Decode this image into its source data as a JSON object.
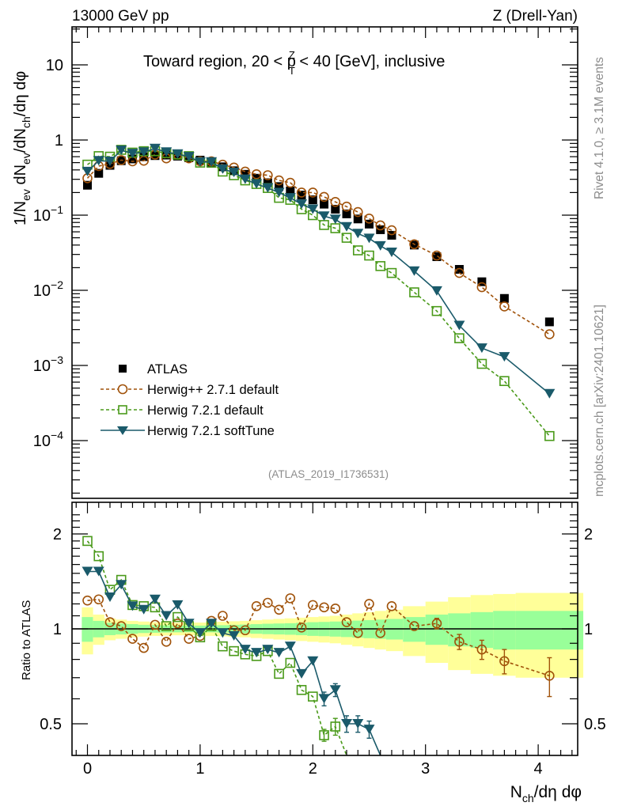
{
  "header": {
    "left": "13000 GeV pp",
    "right": "Z (Drell-Yan)"
  },
  "side_labels": {
    "rivet": "Rivet 4.1.0, ≥ 3.1M events",
    "mcplots": "mcplots.cern.ch [arXiv:2401.10621]"
  },
  "analysis_id": "(ATLAS_2019_I1736531)",
  "colors": {
    "atlas": "#000000",
    "herwigpp": "#a0520a",
    "herwig721": "#4a9a1a",
    "softtune": "#1a5a6a",
    "band_inner": "#99ff99",
    "band_outer": "#ffff99"
  },
  "chart_data": [
    {
      "type": "scatter",
      "panel": "main",
      "title": "Toward region, 20 < p_T^Z < 40 [GeV], inclusive",
      "title_parts": {
        "pre": "Toward region, 20 < p",
        "sup": "Z",
        "sub": "T",
        "post": " < 40 [GeV], inclusive"
      },
      "ylabel": "1/N_ev dN_ev/dN_ch/dη dφ",
      "ylabel_parts": {
        "a": "1/N",
        "a_sub": "ev",
        "b": " dN",
        "b_sub": "ev",
        "c": "/dN",
        "c_sub": "ch",
        "d": "/dη dφ"
      },
      "xlabel": "N_ch/dη dφ",
      "yscale": "log",
      "ylim": [
        2e-05,
        30
      ],
      "xlim": [
        -0.13,
        4.38
      ],
      "ytick_labels": [
        {
          "v": 10,
          "base": "10",
          "exp": ""
        },
        {
          "v": 1,
          "base": "1",
          "exp": ""
        },
        {
          "v": 0.1,
          "base": "10",
          "exp": "−1"
        },
        {
          "v": 0.01,
          "base": "10",
          "exp": "−2"
        },
        {
          "v": 0.001,
          "base": "10",
          "exp": "−3"
        },
        {
          "v": 0.0001,
          "base": "10",
          "exp": "−4"
        }
      ],
      "legend_position": "lower-left",
      "series": [
        {
          "name": "ATLAS",
          "key": "atlas",
          "marker": "square-filled",
          "line": "none",
          "x": [
            0.0,
            0.1,
            0.2,
            0.3,
            0.4,
            0.5,
            0.6,
            0.7,
            0.8,
            0.9,
            1.0,
            1.1,
            1.2,
            1.3,
            1.4,
            1.5,
            1.6,
            1.7,
            1.8,
            1.9,
            2.0,
            2.1,
            2.2,
            2.3,
            2.4,
            2.5,
            2.6,
            2.7,
            2.9,
            3.1,
            3.3,
            3.5,
            3.7,
            4.1
          ],
          "y": [
            0.25,
            0.36,
            0.46,
            0.53,
            0.56,
            0.6,
            0.62,
            0.63,
            0.61,
            0.58,
            0.54,
            0.49,
            0.44,
            0.39,
            0.35,
            0.31,
            0.27,
            0.24,
            0.21,
            0.185,
            0.16,
            0.14,
            0.12,
            0.104,
            0.089,
            0.076,
            0.064,
            0.054,
            0.04,
            0.028,
            0.019,
            0.013,
            0.0078,
            0.0038
          ]
        },
        {
          "name": "Herwig++ 2.7.1 default",
          "key": "herwigpp",
          "marker": "circle-open",
          "line": "dashed",
          "x": [
            0.0,
            0.1,
            0.2,
            0.3,
            0.4,
            0.5,
            0.6,
            0.7,
            0.8,
            0.9,
            1.0,
            1.1,
            1.2,
            1.3,
            1.4,
            1.5,
            1.6,
            1.7,
            1.8,
            1.9,
            2.0,
            2.1,
            2.2,
            2.3,
            2.4,
            2.5,
            2.6,
            2.7,
            2.9,
            3.1,
            3.3,
            3.5,
            3.7,
            4.1
          ],
          "y": [
            0.31,
            0.45,
            0.48,
            0.54,
            0.52,
            0.53,
            0.64,
            0.57,
            0.64,
            0.57,
            0.52,
            0.52,
            0.47,
            0.43,
            0.38,
            0.35,
            0.34,
            0.29,
            0.27,
            0.2,
            0.2,
            0.175,
            0.15,
            0.13,
            0.11,
            0.09,
            0.073,
            0.063,
            0.041,
            0.029,
            0.017,
            0.011,
            0.0061,
            0.0026
          ]
        },
        {
          "name": "Herwig 7.2.1 default",
          "key": "herwig721",
          "marker": "square-open",
          "line": "dashed",
          "x": [
            0.0,
            0.1,
            0.2,
            0.3,
            0.4,
            0.5,
            0.6,
            0.7,
            0.8,
            0.9,
            1.0,
            1.1,
            1.2,
            1.3,
            1.4,
            1.5,
            1.6,
            1.7,
            1.8,
            1.9,
            2.0,
            2.1,
            2.2,
            2.3,
            2.4,
            2.5,
            2.6,
            2.7,
            2.9,
            3.1,
            3.3,
            3.5,
            3.7,
            4.1
          ],
          "y": [
            0.47,
            0.61,
            0.6,
            0.74,
            0.68,
            0.71,
            0.71,
            0.67,
            0.64,
            0.61,
            0.5,
            0.5,
            0.38,
            0.34,
            0.29,
            0.26,
            0.23,
            0.17,
            0.16,
            0.12,
            0.1,
            0.074,
            0.067,
            0.05,
            0.034,
            0.029,
            0.021,
            0.017,
            0.0094,
            0.0053,
            0.0023,
            0.00105,
            0.00062,
            0.000115
          ]
        },
        {
          "name": "Herwig 7.2.1 softTune",
          "key": "softtune",
          "marker": "triangle-down-filled",
          "line": "solid",
          "x": [
            0.0,
            0.1,
            0.2,
            0.3,
            0.4,
            0.5,
            0.6,
            0.7,
            0.8,
            0.9,
            1.0,
            1.1,
            1.2,
            1.3,
            1.4,
            1.5,
            1.6,
            1.7,
            1.8,
            1.9,
            2.0,
            2.1,
            2.2,
            2.3,
            2.4,
            2.5,
            2.6,
            2.7,
            2.9,
            3.1,
            3.3,
            3.5,
            3.7,
            4.1
          ],
          "y": [
            0.38,
            0.53,
            0.52,
            0.73,
            0.66,
            0.69,
            0.77,
            0.69,
            0.65,
            0.6,
            0.51,
            0.51,
            0.41,
            0.37,
            0.3,
            0.26,
            0.23,
            0.2,
            0.17,
            0.14,
            0.12,
            0.097,
            0.088,
            0.07,
            0.057,
            0.049,
            0.039,
            0.032,
            0.018,
            0.0098,
            0.0034,
            0.0017,
            0.0013,
            0.00042
          ]
        }
      ]
    },
    {
      "type": "scatter",
      "panel": "ratio",
      "ylabel": "Ratio to ATLAS",
      "xlabel": "N_ch/dη dφ",
      "yscale": "log",
      "ylim": [
        0.43,
        2.35
      ],
      "xlim": [
        -0.13,
        4.38
      ],
      "ytick_labels": [
        {
          "v": 2,
          "label": "2"
        },
        {
          "v": 1,
          "label": "1"
        },
        {
          "v": 0.5,
          "label": "0.5"
        }
      ],
      "xtick_labels": [
        {
          "v": 0,
          "label": "0"
        },
        {
          "v": 1,
          "label": "1"
        },
        {
          "v": 2,
          "label": "2"
        },
        {
          "v": 3,
          "label": "3"
        },
        {
          "v": 4,
          "label": "4"
        }
      ],
      "reference_line": 1,
      "uncertainty_band": {
        "x_edges": [
          -0.05,
          0.05,
          0.15,
          0.25,
          0.35,
          0.45,
          0.55,
          0.65,
          0.75,
          0.85,
          0.95,
          1.05,
          1.15,
          1.25,
          1.35,
          1.45,
          1.55,
          1.65,
          1.75,
          1.85,
          1.95,
          2.05,
          2.15,
          2.25,
          2.35,
          2.45,
          2.55,
          2.65,
          2.8,
          3.0,
          3.2,
          3.4,
          3.6,
          3.8,
          4.4
        ],
        "inner": [
          0.09,
          0.06,
          0.045,
          0.04,
          0.035,
          0.03,
          0.028,
          0.026,
          0.025,
          0.024,
          0.024,
          0.025,
          0.027,
          0.03,
          0.032,
          0.035,
          0.038,
          0.04,
          0.042,
          0.045,
          0.05,
          0.052,
          0.055,
          0.058,
          0.062,
          0.066,
          0.07,
          0.075,
          0.09,
          0.11,
          0.12,
          0.13,
          0.14,
          0.14
        ],
        "outer": [
          0.17,
          0.11,
          0.08,
          0.07,
          0.06,
          0.055,
          0.05,
          0.048,
          0.046,
          0.046,
          0.047,
          0.05,
          0.053,
          0.057,
          0.06,
          0.065,
          0.07,
          0.075,
          0.08,
          0.085,
          0.09,
          0.095,
          0.1,
          0.11,
          0.12,
          0.13,
          0.14,
          0.15,
          0.18,
          0.22,
          0.26,
          0.28,
          0.29,
          0.3
        ]
      },
      "series": [
        {
          "name": "Herwig++ 2.7.1 default",
          "key": "herwigpp",
          "marker": "circle-open",
          "line": "dashed",
          "x": [
            0.0,
            0.1,
            0.2,
            0.3,
            0.4,
            0.5,
            0.6,
            0.7,
            0.8,
            0.9,
            1.0,
            1.1,
            1.2,
            1.3,
            1.4,
            1.5,
            1.6,
            1.7,
            1.8,
            1.9,
            2.0,
            2.1,
            2.2,
            2.3,
            2.4,
            2.5,
            2.6,
            2.7,
            2.9,
            3.1,
            3.3,
            3.5,
            3.7,
            4.1
          ],
          "y": [
            1.23,
            1.24,
            1.05,
            1.02,
            0.93,
            0.87,
            1.03,
            0.91,
            1.04,
            0.93,
            0.95,
            1.06,
            1.1,
            0.99,
            0.99,
            1.18,
            1.21,
            1.15,
            1.25,
            1.01,
            1.19,
            1.17,
            1.16,
            1.05,
            0.97,
            1.2,
            0.97,
            1.18,
            1.02,
            1.04,
            0.91,
            0.86,
            0.79,
            0.71
          ],
          "yerr": [
            0.01,
            0.01,
            0.01,
            0.01,
            0.01,
            0.01,
            0.01,
            0.01,
            0.01,
            0.01,
            0.01,
            0.01,
            0.01,
            0.01,
            0.01,
            0.01,
            0.01,
            0.02,
            0.02,
            0.02,
            0.02,
            0.02,
            0.02,
            0.02,
            0.03,
            0.03,
            0.03,
            0.03,
            0.03,
            0.04,
            0.05,
            0.06,
            0.07,
            0.1
          ]
        },
        {
          "name": "Herwig 7.2.1 default",
          "key": "herwig721",
          "marker": "square-open",
          "line": "dashed",
          "x": [
            0.0,
            0.1,
            0.2,
            0.3,
            0.4,
            0.5,
            0.6,
            0.7,
            0.8,
            0.9,
            1.0,
            1.1,
            1.2,
            1.3,
            1.4,
            1.5,
            1.6,
            1.7,
            1.8,
            1.9,
            2.0,
            2.1,
            2.2,
            2.3
          ],
          "y": [
            1.9,
            1.7,
            1.33,
            1.43,
            1.19,
            1.18,
            1.17,
            1.02,
            1.09,
            1.02,
            0.94,
            1.02,
            0.88,
            0.85,
            0.83,
            0.82,
            0.85,
            0.72,
            0.78,
            0.64,
            0.61,
            0.46,
            0.49,
            0.37
          ],
          "yerr": [
            0.01,
            0.01,
            0.01,
            0.01,
            0.01,
            0.01,
            0.01,
            0.01,
            0.01,
            0.01,
            0.01,
            0.01,
            0.01,
            0.01,
            0.02,
            0.02,
            0.02,
            0.02,
            0.02,
            0.02,
            0.02,
            0.02,
            0.03,
            0.03
          ]
        },
        {
          "name": "Herwig 7.2.1 softTune",
          "key": "softtune",
          "marker": "triangle-down-filled",
          "line": "solid",
          "x": [
            0.0,
            0.1,
            0.2,
            0.3,
            0.4,
            0.5,
            0.6,
            0.7,
            0.8,
            0.9,
            1.0,
            1.1,
            1.2,
            1.3,
            1.4,
            1.5,
            1.6,
            1.7,
            1.8,
            1.9,
            2.0,
            2.1,
            2.2,
            2.3,
            2.4,
            2.5,
            2.6
          ],
          "y": [
            1.52,
            1.52,
            1.26,
            1.38,
            1.18,
            1.15,
            1.24,
            1.1,
            1.19,
            1.04,
            0.97,
            1.04,
            0.97,
            0.95,
            0.86,
            0.84,
            0.86,
            0.84,
            0.88,
            0.72,
            0.79,
            0.6,
            0.64,
            0.5,
            0.5,
            0.48,
            0.3
          ],
          "yerr": [
            0.01,
            0.01,
            0.01,
            0.01,
            0.01,
            0.01,
            0.01,
            0.01,
            0.01,
            0.01,
            0.01,
            0.01,
            0.01,
            0.01,
            0.01,
            0.02,
            0.02,
            0.02,
            0.02,
            0.02,
            0.02,
            0.03,
            0.03,
            0.03,
            0.03,
            0.03,
            0.03
          ]
        }
      ]
    }
  ],
  "legend": [
    {
      "key": "atlas",
      "label": "ATLAS"
    },
    {
      "key": "herwigpp",
      "label": "Herwig++ 2.7.1 default"
    },
    {
      "key": "herwig721",
      "label": "Herwig 7.2.1 default"
    },
    {
      "key": "softtune",
      "label": "Herwig 7.2.1 softTune"
    }
  ]
}
